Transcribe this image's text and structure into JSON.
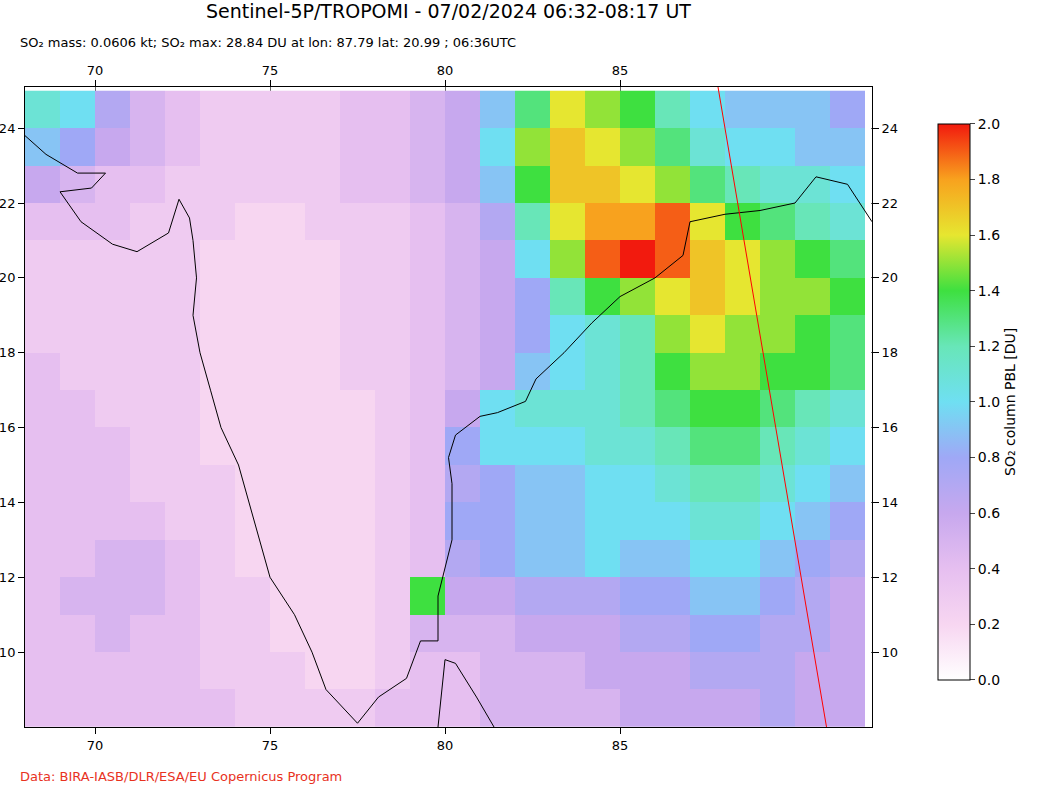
{
  "chart_data": {
    "type": "heatmap",
    "title": "Sentinel-5P/TROPOMI - 07/02/2024 06:32-08:17 UT",
    "subtitle": "SO₂ mass: 0.0606 kt; SO₂ max: 28.84 DU at lon: 87.79 lat: 20.99 ; 06:36UTC",
    "credit": "Data: BIRA-IASB/DLR/ESA/EU Copernicus Program",
    "xlim": [
      68,
      92.2
    ],
    "ylim": [
      8,
      25.1
    ],
    "xticks": [
      70,
      75,
      80,
      85
    ],
    "yticks": [
      10,
      12,
      14,
      16,
      18,
      20,
      22,
      24
    ],
    "grid": true,
    "x": [
      68.5,
      69.5,
      70.5,
      71.5,
      72.5,
      73.5,
      74.5,
      75.5,
      76.5,
      77.5,
      78.5,
      79.5,
      80.5,
      81.5,
      82.5,
      83.5,
      84.5,
      85.5,
      86.5,
      87.5,
      88.5,
      89.5,
      90.5,
      91.5
    ],
    "y": [
      8.5,
      9.5,
      10.5,
      11.5,
      12.5,
      13.5,
      14.5,
      15.5,
      16.5,
      17.5,
      18.5,
      19.5,
      20.5,
      21.5,
      22.5,
      23.5,
      24.5
    ],
    "z": [
      [
        0.4,
        0.4,
        0.4,
        0.4,
        0.4,
        0.4,
        0.3,
        0.3,
        0.3,
        0.3,
        0.4,
        0.4,
        0.4,
        0.5,
        0.5,
        0.5,
        0.5,
        0.6,
        0.6,
        0.6,
        0.6,
        0.7,
        0.6,
        0.6
      ],
      [
        0.4,
        0.4,
        0.4,
        0.4,
        0.4,
        0.3,
        0.3,
        0.3,
        0.2,
        0.2,
        0.3,
        0.4,
        0.4,
        0.5,
        0.5,
        0.5,
        0.6,
        0.6,
        0.6,
        0.7,
        0.7,
        0.7,
        0.6,
        0.6
      ],
      [
        0.4,
        0.4,
        0.5,
        0.4,
        0.4,
        0.3,
        0.3,
        0.2,
        0.2,
        0.2,
        0.3,
        0.5,
        0.5,
        0.5,
        0.6,
        0.6,
        0.6,
        0.7,
        0.7,
        0.8,
        0.8,
        0.7,
        0.7,
        0.6
      ],
      [
        0.4,
        0.5,
        0.5,
        0.5,
        0.4,
        0.3,
        0.3,
        0.2,
        0.2,
        0.2,
        0.3,
        1.4,
        0.6,
        0.6,
        0.7,
        0.7,
        0.7,
        0.8,
        0.8,
        0.9,
        0.9,
        0.8,
        0.7,
        0.6
      ],
      [
        0.4,
        0.4,
        0.5,
        0.5,
        0.4,
        0.3,
        0.2,
        0.2,
        0.2,
        0.2,
        0.3,
        0.4,
        0.7,
        0.8,
        0.9,
        0.9,
        1.0,
        0.9,
        0.9,
        1.0,
        1.0,
        0.9,
        0.8,
        0.7
      ],
      [
        0.4,
        0.4,
        0.4,
        0.4,
        0.3,
        0.3,
        0.2,
        0.2,
        0.2,
        0.2,
        0.3,
        0.4,
        0.8,
        0.8,
        0.9,
        0.9,
        1.0,
        1.0,
        1.0,
        1.1,
        1.1,
        1.0,
        0.9,
        0.8
      ],
      [
        0.4,
        0.4,
        0.4,
        0.3,
        0.3,
        0.3,
        0.2,
        0.2,
        0.2,
        0.2,
        0.3,
        0.4,
        0.7,
        0.8,
        0.9,
        0.9,
        1.0,
        1.0,
        1.1,
        1.2,
        1.2,
        1.1,
        1.0,
        0.9
      ],
      [
        0.4,
        0.4,
        0.4,
        0.3,
        0.3,
        0.2,
        0.2,
        0.2,
        0.2,
        0.2,
        0.3,
        0.4,
        0.8,
        1.0,
        1.0,
        1.0,
        1.1,
        1.1,
        1.2,
        1.3,
        1.3,
        1.2,
        1.1,
        1.0
      ],
      [
        0.4,
        0.4,
        0.3,
        0.3,
        0.3,
        0.2,
        0.2,
        0.2,
        0.2,
        0.2,
        0.3,
        0.4,
        0.6,
        1.0,
        1.1,
        1.1,
        1.1,
        1.2,
        1.3,
        1.4,
        1.4,
        1.3,
        1.2,
        1.1
      ],
      [
        0.4,
        0.3,
        0.3,
        0.3,
        0.3,
        0.2,
        0.2,
        0.2,
        0.2,
        0.3,
        0.3,
        0.4,
        0.5,
        0.6,
        0.9,
        1.0,
        1.1,
        1.2,
        1.4,
        1.5,
        1.5,
        1.4,
        1.4,
        1.3
      ],
      [
        0.3,
        0.3,
        0.3,
        0.3,
        0.3,
        0.2,
        0.2,
        0.2,
        0.2,
        0.3,
        0.3,
        0.4,
        0.5,
        0.6,
        0.8,
        1.0,
        1.1,
        1.2,
        1.5,
        1.6,
        1.5,
        1.5,
        1.4,
        1.3
      ],
      [
        0.3,
        0.3,
        0.3,
        0.3,
        0.3,
        0.2,
        0.2,
        0.2,
        0.2,
        0.3,
        0.3,
        0.4,
        0.5,
        0.6,
        0.8,
        1.2,
        1.4,
        1.5,
        1.6,
        1.7,
        1.6,
        1.5,
        1.5,
        1.4
      ],
      [
        0.3,
        0.3,
        0.3,
        0.3,
        0.3,
        0.2,
        0.2,
        0.2,
        0.2,
        0.3,
        0.3,
        0.4,
        0.5,
        0.6,
        1.0,
        1.5,
        1.9,
        2.0,
        1.9,
        1.7,
        1.6,
        1.5,
        1.4,
        1.3
      ],
      [
        0.4,
        0.4,
        0.4,
        0.3,
        0.3,
        0.3,
        0.2,
        0.2,
        0.3,
        0.3,
        0.3,
        0.4,
        0.5,
        0.7,
        1.2,
        1.6,
        1.8,
        1.8,
        1.9,
        1.6,
        1.4,
        1.3,
        1.2,
        1.1
      ],
      [
        0.6,
        0.5,
        0.4,
        0.4,
        0.3,
        0.3,
        0.3,
        0.3,
        0.3,
        0.4,
        0.4,
        0.5,
        0.6,
        0.9,
        1.4,
        1.7,
        1.7,
        1.6,
        1.5,
        1.3,
        1.2,
        1.1,
        1.1,
        1.0
      ],
      [
        0.9,
        0.8,
        0.6,
        0.5,
        0.4,
        0.3,
        0.3,
        0.3,
        0.3,
        0.4,
        0.4,
        0.5,
        0.6,
        1.0,
        1.5,
        1.7,
        1.6,
        1.5,
        1.3,
        1.1,
        1.0,
        1.0,
        0.9,
        0.9
      ],
      [
        1.1,
        1.0,
        0.7,
        0.5,
        0.4,
        0.3,
        0.3,
        0.3,
        0.3,
        0.4,
        0.4,
        0.5,
        0.6,
        0.9,
        1.3,
        1.6,
        1.5,
        1.4,
        1.2,
        1.0,
        0.9,
        0.9,
        0.9,
        0.8
      ]
    ],
    "colorbar": {
      "title": "SO₂ column PBL [DU]",
      "range": [
        0,
        2
      ],
      "ticks": [
        {
          "value": 0,
          "label": "0.0"
        },
        {
          "value": 0.2,
          "label": "0.2"
        },
        {
          "value": 0.4,
          "label": "0.4"
        },
        {
          "value": 0.6,
          "label": "0.6"
        },
        {
          "value": 0.8,
          "label": "0.8"
        },
        {
          "value": 1,
          "label": "1.0"
        },
        {
          "value": 1.2,
          "label": "1.2"
        },
        {
          "value": 1.4,
          "label": "1.4"
        },
        {
          "value": 1.6,
          "label": "1.6"
        },
        {
          "value": 1.8,
          "label": "1.8"
        },
        {
          "value": 2,
          "label": "2.0"
        }
      ]
    },
    "coastline": [
      {
        "lon": [
          68.0,
          68.6,
          69.5,
          70.3,
          69.9,
          69.0,
          69.6,
          70.5,
          71.2,
          72.1,
          72.4,
          72.7,
          72.8,
          72.9,
          72.8,
          73.0,
          73.3,
          73.6,
          74.1,
          74.4,
          74.7,
          75.0,
          75.7,
          76.2,
          76.6,
          77.5,
          78.1,
          78.9,
          79.3,
          79.8,
          79.8,
          80.2,
          80.2,
          80.1,
          80.3,
          81.0,
          81.5,
          82.3,
          82.6,
          83.4,
          84.2,
          85.0,
          86.0,
          86.8,
          87.0,
          88.0,
          89.0,
          90.0,
          90.6,
          91.5,
          92.2
        ],
        "lat": [
          23.8,
          23.3,
          22.8,
          22.8,
          22.4,
          22.3,
          21.5,
          20.9,
          20.7,
          21.2,
          22.1,
          21.6,
          21.0,
          20.0,
          19.0,
          18.0,
          17.0,
          16.0,
          15.0,
          14.0,
          13.0,
          12.0,
          11.0,
          10.0,
          9.0,
          8.1,
          8.8,
          9.3,
          10.3,
          10.3,
          11.5,
          13.0,
          14.5,
          15.2,
          15.8,
          16.3,
          16.4,
          16.7,
          17.3,
          18.0,
          18.8,
          19.5,
          20.0,
          20.6,
          21.5,
          21.7,
          21.8,
          22.0,
          22.7,
          22.5,
          21.5
        ]
      },
      {
        "lon": [
          79.8,
          79.9,
          80.0,
          80.3,
          80.9,
          81.4
        ],
        "lat": [
          8.0,
          9.0,
          9.8,
          9.7,
          8.8,
          8.0
        ]
      }
    ],
    "orbit_edge": {
      "lon": [
        87.8,
        90.9
      ],
      "lat": [
        25.1,
        8.0
      ],
      "color": "#ff0000"
    }
  }
}
